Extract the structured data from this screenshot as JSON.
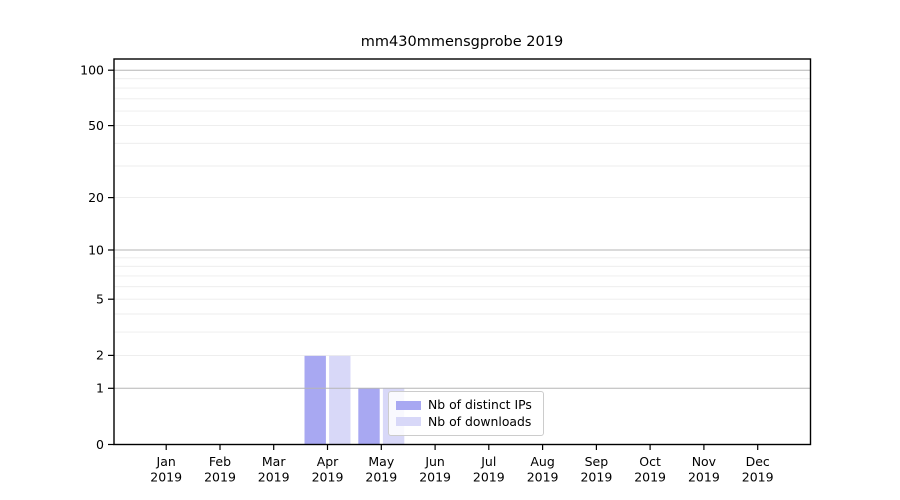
{
  "chart_data": {
    "type": "bar",
    "title": "mm430mmensgprobe 2019",
    "categories": [
      "Jan",
      "Feb",
      "Mar",
      "Apr",
      "May",
      "Jun",
      "Jul",
      "Aug",
      "Sep",
      "Oct",
      "Nov",
      "Dec"
    ],
    "category_year": "2019",
    "series": [
      {
        "name": "Nb of distinct IPs",
        "color": "#a8a8f2",
        "values": [
          0,
          0,
          0,
          2,
          1,
          0,
          0,
          0,
          0,
          0,
          0,
          0
        ]
      },
      {
        "name": "Nb of downloads",
        "color": "#d8d8f8",
        "values": [
          0,
          0,
          0,
          2,
          1,
          0,
          0,
          0,
          0,
          0,
          0,
          0
        ]
      }
    ],
    "yscale": "log1p",
    "ylim": [
      0,
      115
    ],
    "y_ticks": [
      0,
      1,
      2,
      5,
      10,
      20,
      50,
      100
    ],
    "grid": {
      "major_lines": [
        1,
        10,
        100
      ],
      "minor_lines": [
        2,
        3,
        4,
        5,
        6,
        7,
        8,
        9,
        20,
        30,
        40,
        50,
        60,
        70,
        80,
        90
      ],
      "major_color": "#b6b6b6",
      "minor_color": "#ececec"
    },
    "legend_position": "lower center-left inside plot",
    "axis_color": "#000000",
    "text_color": "#000000",
    "background": "#ffffff"
  }
}
